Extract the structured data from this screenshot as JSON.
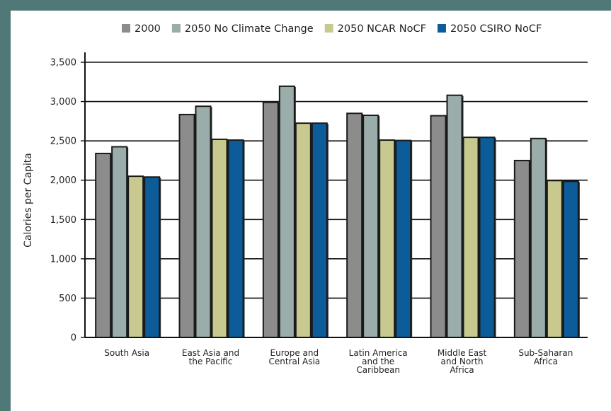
{
  "chart_data": {
    "type": "bar",
    "title": "",
    "xlabel": "",
    "ylabel": "Calories per Capita",
    "ylim": [
      0,
      3500
    ],
    "yticks": [
      0,
      500,
      1000,
      1500,
      2000,
      2500,
      3000,
      3500
    ],
    "ytick_labels": [
      "0",
      "500",
      "1,000",
      "1,500",
      "2,000",
      "2,500",
      "3,000",
      "3,500"
    ],
    "grid": "horizontal",
    "legend_position": "top",
    "categories": [
      [
        "South Asia"
      ],
      [
        "East Asia and",
        "the Pacific"
      ],
      [
        "Europe and",
        "Central Asia"
      ],
      [
        "Latin America",
        "and the",
        "Caribbean"
      ],
      [
        "Middle East",
        "and North",
        "Africa"
      ],
      [
        "Sub-Saharan",
        "Africa"
      ]
    ],
    "series": [
      {
        "name": "2000",
        "color": "#8c8c8c",
        "values": [
          2340,
          2835,
          2990,
          2850,
          2820,
          2250
        ]
      },
      {
        "name": "2050 No Climate Change",
        "color": "#9aadab",
        "values": [
          2425,
          2940,
          3195,
          2825,
          3080,
          2530
        ]
      },
      {
        "name": "2050 NCAR NoCF",
        "color": "#c8c98f",
        "values": [
          2050,
          2520,
          2725,
          2510,
          2545,
          1995
        ]
      },
      {
        "name": "2050 CSIRO NoCF",
        "color": "#0b5c99",
        "values": [
          2040,
          2510,
          2725,
          2505,
          2545,
          1985
        ]
      }
    ]
  }
}
